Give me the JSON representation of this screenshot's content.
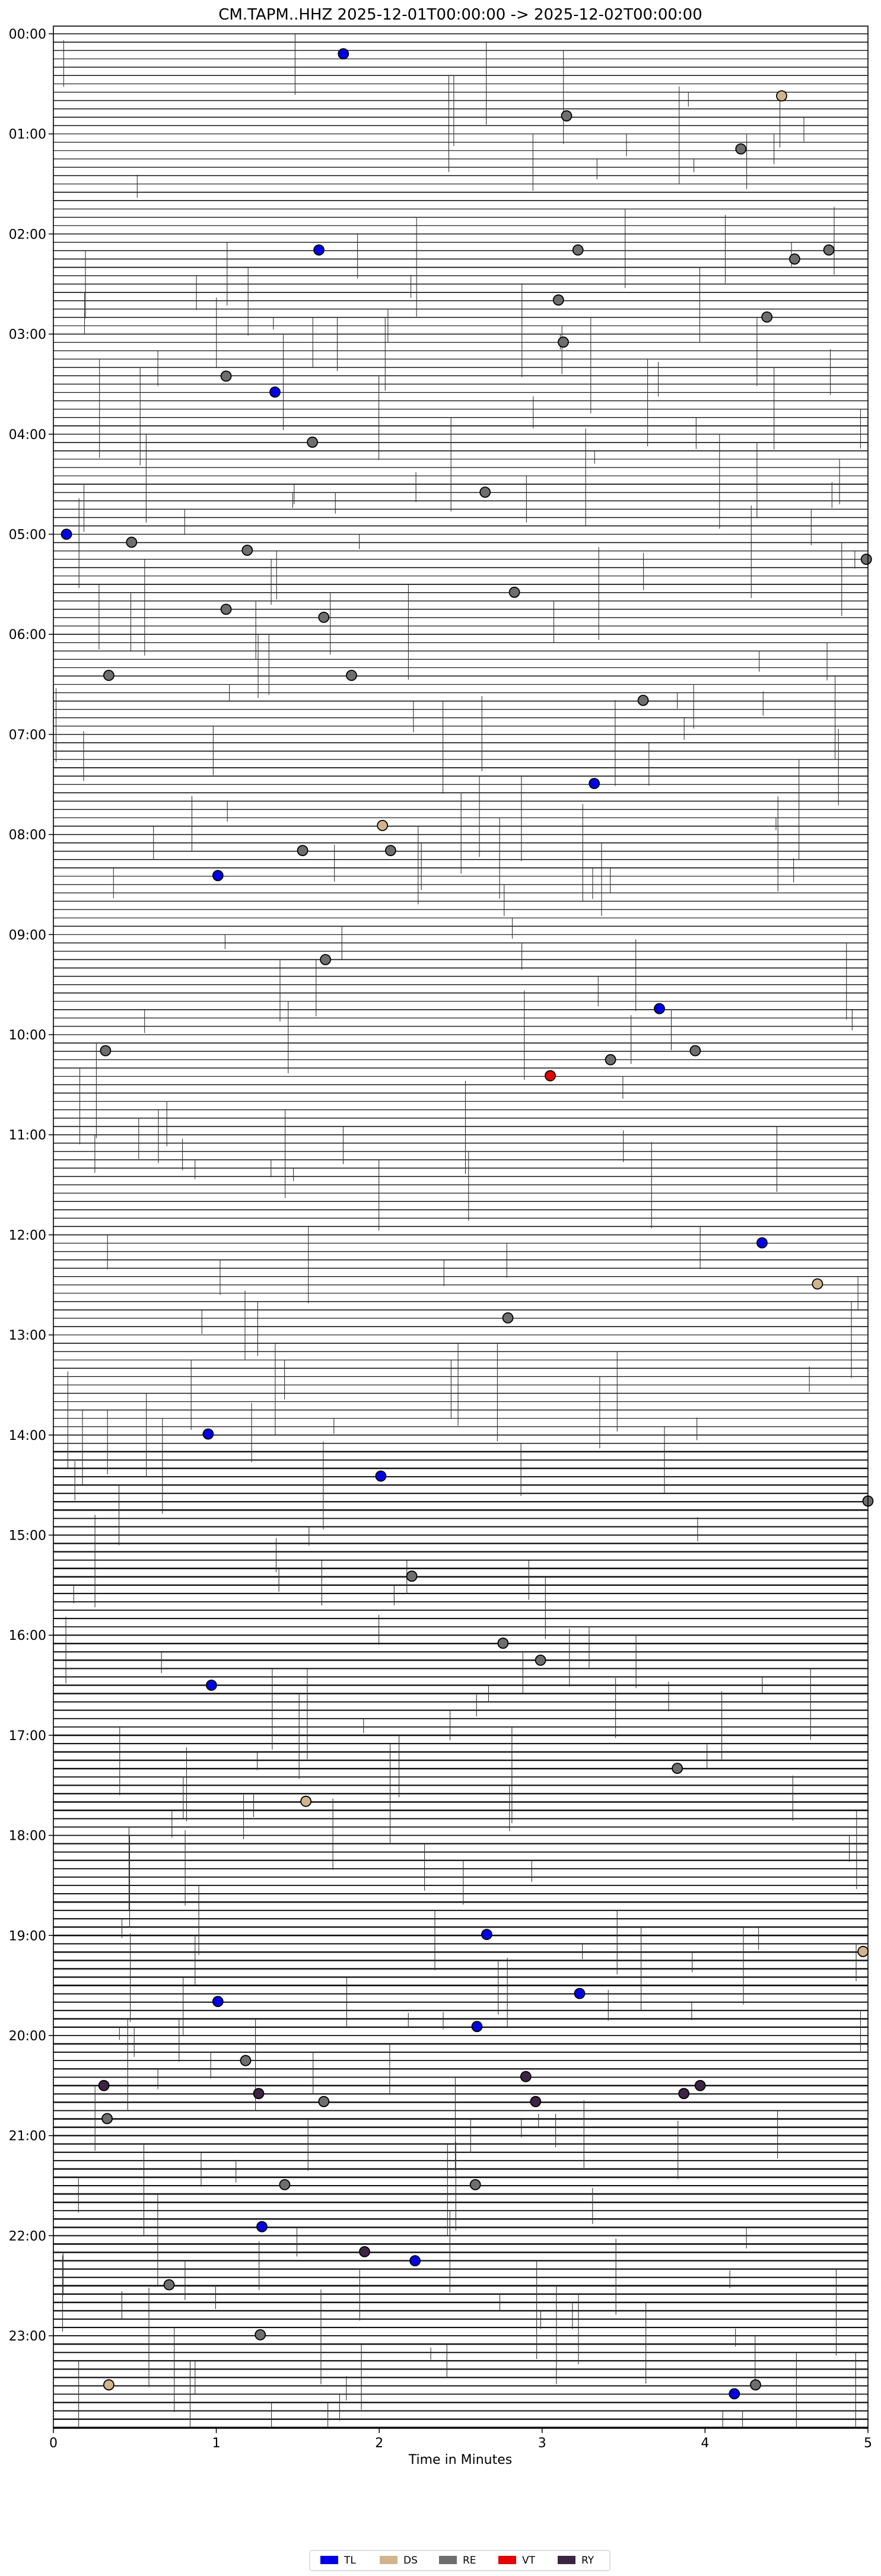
{
  "chart_data": {
    "type": "scatter",
    "title": "CM.TAPM..HHZ  2025-12-01T00:00:00 -> 2025-12-02T00:00:00",
    "xlabel": "Time in Minutes",
    "ylabel": "",
    "xlim": [
      0,
      5
    ],
    "x_ticks": [
      "0",
      "1",
      "2",
      "3",
      "4",
      "5"
    ],
    "y_ticks": [
      "00:00",
      "01:00",
      "02:00",
      "03:00",
      "04:00",
      "05:00",
      "06:00",
      "07:00",
      "08:00",
      "09:00",
      "10:00",
      "11:00",
      "12:00",
      "13:00",
      "14:00",
      "15:00",
      "16:00",
      "17:00",
      "18:00",
      "19:00",
      "20:00",
      "21:00",
      "22:00",
      "23:00"
    ],
    "row_minutes": 5,
    "rows_per_hour": 12,
    "legend_position": "bottom-center",
    "legend": [
      {
        "label": "TL",
        "color": "#0000e6"
      },
      {
        "label": "DS",
        "color": "#d2b48c"
      },
      {
        "label": "RE",
        "color": "#6e6e6e"
      },
      {
        "label": "VT",
        "color": "#e60000"
      },
      {
        "label": "RY",
        "color": "#3d2444"
      }
    ],
    "events": [
      {
        "hour": 0.2,
        "minute": 1.78,
        "class": "TL"
      },
      {
        "hour": 0.62,
        "minute": 4.47,
        "class": "DS"
      },
      {
        "hour": 0.82,
        "minute": 3.15,
        "class": "RE"
      },
      {
        "hour": 1.15,
        "minute": 4.22,
        "class": "RE"
      },
      {
        "hour": 2.16,
        "minute": 1.63,
        "class": "TL"
      },
      {
        "hour": 2.16,
        "minute": 3.22,
        "class": "RE"
      },
      {
        "hour": 2.16,
        "minute": 4.76,
        "class": "RE"
      },
      {
        "hour": 2.25,
        "minute": 4.55,
        "class": "RE"
      },
      {
        "hour": 2.66,
        "minute": 3.1,
        "class": "RE"
      },
      {
        "hour": 2.83,
        "minute": 4.38,
        "class": "RE"
      },
      {
        "hour": 3.08,
        "minute": 3.13,
        "class": "RE"
      },
      {
        "hour": 3.42,
        "minute": 1.06,
        "class": "RE"
      },
      {
        "hour": 3.58,
        "minute": 1.36,
        "class": "TL"
      },
      {
        "hour": 4.08,
        "minute": 1.59,
        "class": "RE"
      },
      {
        "hour": 4.58,
        "minute": 2.65,
        "class": "RE"
      },
      {
        "hour": 5.0,
        "minute": 0.08,
        "class": "TL"
      },
      {
        "hour": 5.08,
        "minute": 0.48,
        "class": "RE"
      },
      {
        "hour": 5.16,
        "minute": 1.19,
        "class": "RE"
      },
      {
        "hour": 5.25,
        "minute": 4.99,
        "class": "RE"
      },
      {
        "hour": 5.58,
        "minute": 2.83,
        "class": "RE"
      },
      {
        "hour": 5.75,
        "minute": 1.06,
        "class": "RE"
      },
      {
        "hour": 5.83,
        "minute": 1.66,
        "class": "RE"
      },
      {
        "hour": 6.41,
        "minute": 0.34,
        "class": "RE"
      },
      {
        "hour": 6.41,
        "minute": 1.83,
        "class": "RE"
      },
      {
        "hour": 6.66,
        "minute": 3.62,
        "class": "RE"
      },
      {
        "hour": 7.49,
        "minute": 3.32,
        "class": "TL"
      },
      {
        "hour": 7.91,
        "minute": 2.02,
        "class": "DS"
      },
      {
        "hour": 8.16,
        "minute": 1.53,
        "class": "RE"
      },
      {
        "hour": 8.16,
        "minute": 2.07,
        "class": "RE"
      },
      {
        "hour": 8.41,
        "minute": 1.01,
        "class": "TL"
      },
      {
        "hour": 9.25,
        "minute": 1.67,
        "class": "RE"
      },
      {
        "hour": 9.74,
        "minute": 3.72,
        "class": "TL"
      },
      {
        "hour": 10.16,
        "minute": 0.32,
        "class": "RE"
      },
      {
        "hour": 10.16,
        "minute": 3.94,
        "class": "RE"
      },
      {
        "hour": 10.25,
        "minute": 3.42,
        "class": "RE"
      },
      {
        "hour": 10.41,
        "minute": 3.05,
        "class": "VT"
      },
      {
        "hour": 12.08,
        "minute": 4.35,
        "class": "TL"
      },
      {
        "hour": 12.49,
        "minute": 4.69,
        "class": "DS"
      },
      {
        "hour": 12.83,
        "minute": 2.79,
        "class": "RE"
      },
      {
        "hour": 13.99,
        "minute": 0.95,
        "class": "TL"
      },
      {
        "hour": 14.41,
        "minute": 2.01,
        "class": "TL"
      },
      {
        "hour": 14.66,
        "minute": 5.0,
        "class": "RE"
      },
      {
        "hour": 15.41,
        "minute": 2.2,
        "class": "RE"
      },
      {
        "hour": 16.08,
        "minute": 2.76,
        "class": "RE"
      },
      {
        "hour": 16.25,
        "minute": 2.99,
        "class": "RE"
      },
      {
        "hour": 16.5,
        "minute": 0.97,
        "class": "TL"
      },
      {
        "hour": 17.33,
        "minute": 3.83,
        "class": "RE"
      },
      {
        "hour": 17.66,
        "minute": 1.55,
        "class": "DS"
      },
      {
        "hour": 18.99,
        "minute": 2.66,
        "class": "TL"
      },
      {
        "hour": 19.16,
        "minute": 4.97,
        "class": "DS"
      },
      {
        "hour": 19.58,
        "minute": 3.23,
        "class": "TL"
      },
      {
        "hour": 19.66,
        "minute": 1.01,
        "class": "TL"
      },
      {
        "hour": 19.91,
        "minute": 2.6,
        "class": "TL"
      },
      {
        "hour": 20.25,
        "minute": 1.18,
        "class": "RE"
      },
      {
        "hour": 20.41,
        "minute": 2.9,
        "class": "RY"
      },
      {
        "hour": 20.5,
        "minute": 0.31,
        "class": "RY"
      },
      {
        "hour": 20.5,
        "minute": 3.97,
        "class": "RY"
      },
      {
        "hour": 20.58,
        "minute": 1.26,
        "class": "RY"
      },
      {
        "hour": 20.58,
        "minute": 3.87,
        "class": "RY"
      },
      {
        "hour": 20.66,
        "minute": 1.66,
        "class": "RE"
      },
      {
        "hour": 20.66,
        "minute": 2.96,
        "class": "RY"
      },
      {
        "hour": 20.83,
        "minute": 0.33,
        "class": "RE"
      },
      {
        "hour": 21.49,
        "minute": 1.42,
        "class": "RE"
      },
      {
        "hour": 21.49,
        "minute": 2.59,
        "class": "RE"
      },
      {
        "hour": 21.91,
        "minute": 1.28,
        "class": "TL"
      },
      {
        "hour": 22.16,
        "minute": 1.91,
        "class": "RY"
      },
      {
        "hour": 22.25,
        "minute": 2.22,
        "class": "TL"
      },
      {
        "hour": 22.49,
        "minute": 0.71,
        "class": "RE"
      },
      {
        "hour": 22.99,
        "minute": 1.27,
        "class": "RE"
      },
      {
        "hour": 23.49,
        "minute": 0.34,
        "class": "DS"
      },
      {
        "hour": 23.49,
        "minute": 4.31,
        "class": "RE"
      },
      {
        "hour": 23.58,
        "minute": 4.18,
        "class": "TL"
      }
    ]
  }
}
